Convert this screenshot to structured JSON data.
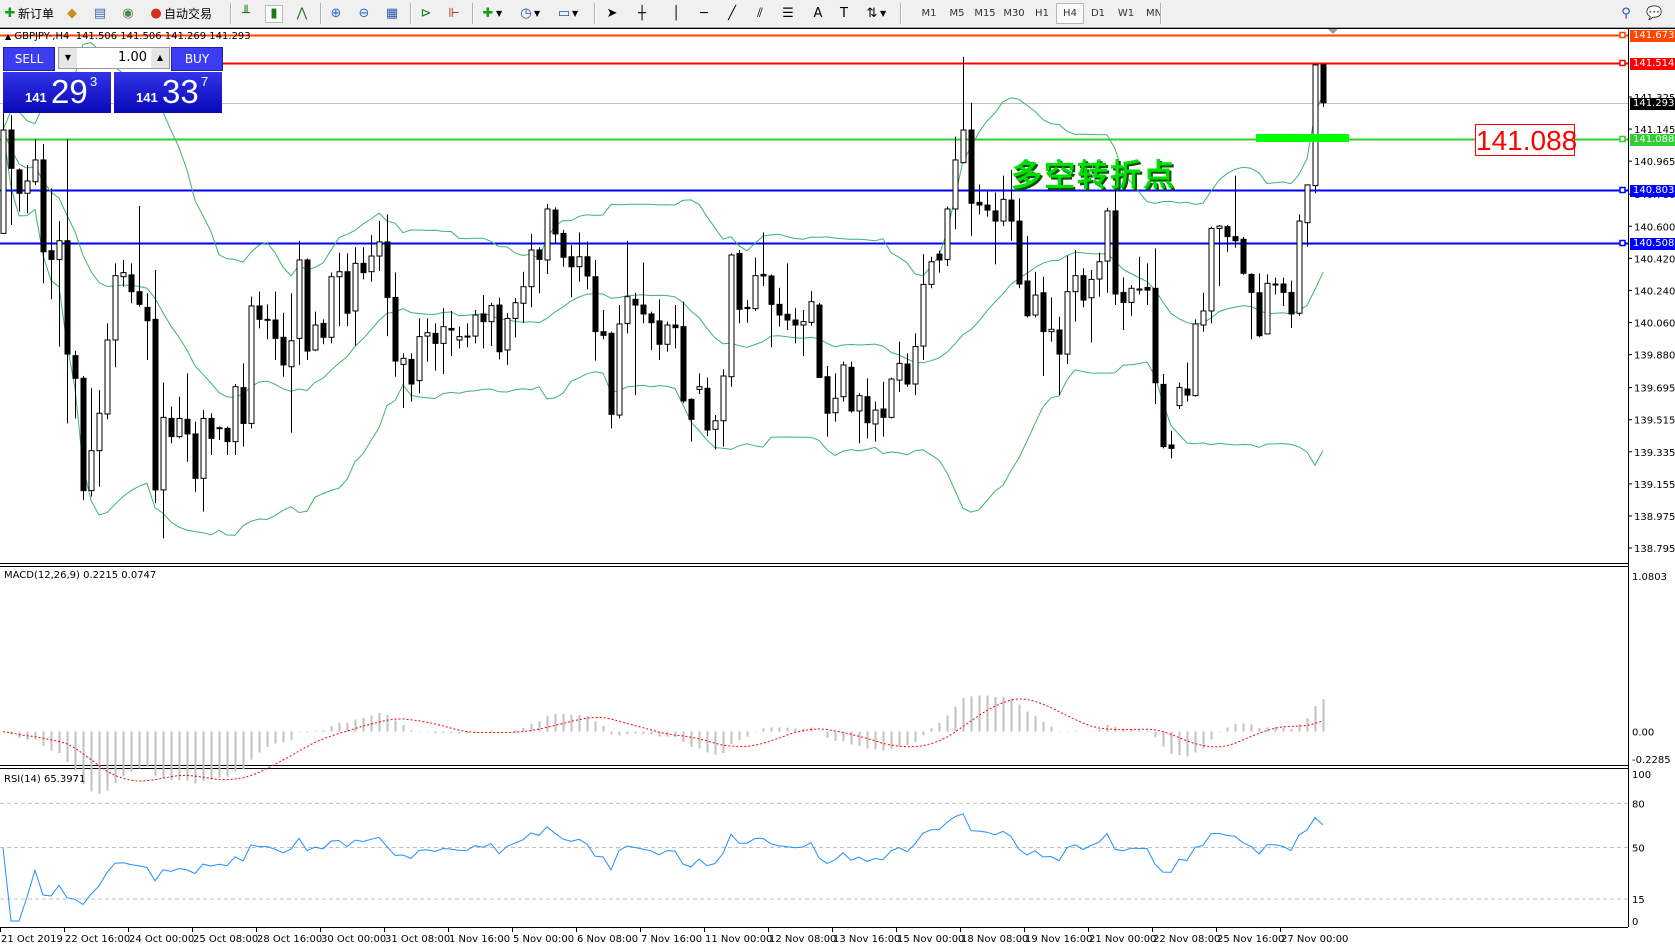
{
  "toolbar": {
    "new_order": {
      "label": "新订单",
      "icon": "new-order-icon"
    },
    "auto_trading": {
      "label": "自动交易",
      "icon": "auto-trading-icon"
    },
    "timeframes": [
      "M1",
      "M5",
      "M15",
      "M30",
      "H1",
      "H4",
      "D1",
      "W1",
      "MN"
    ],
    "active_timeframe": "H4"
  },
  "chart_header": {
    "symbol": "GBPJPY-,H4",
    "ohlc": "141.506 141.506 141.269 141.293"
  },
  "one_click": {
    "sell_label": "SELL",
    "buy_label": "BUY",
    "lot": "1.00",
    "sell_price": {
      "prefix": "141",
      "big": "29",
      "sup": "3"
    },
    "buy_price": {
      "prefix": "141",
      "big": "33",
      "sup": "7"
    }
  },
  "annotation": {
    "text": "多空转折点",
    "price_box": "141.088"
  },
  "colors": {
    "bull_body": "#ffffff",
    "bear_body": "#000000",
    "bollinger": "#3cb371",
    "macd_hist": "#c0c0c0",
    "macd_signal": "#ff0000",
    "rsi": "#1e90ff"
  },
  "chart_data": [
    {
      "type": "candlestick",
      "title": "GBPJPY-,H4",
      "ylim": [
        138.711,
        141.701
      ],
      "y_ticks": [
        "141.325",
        "141.145",
        "140.965",
        "140.780",
        "140.600",
        "140.420",
        "140.240",
        "140.060",
        "139.880",
        "139.695",
        "139.515",
        "139.335",
        "139.155",
        "138.975",
        "138.795"
      ],
      "x_tick_labels": [
        "21 Oct 2019",
        "22 Oct 16:00",
        "24 Oct 00:00",
        "25 Oct 08:00",
        "28 Oct 16:00",
        "30 Oct 00:00",
        "31 Oct 08:00",
        "1 Nov 16:00",
        "5 Nov 00:00",
        "6 Nov 08:00",
        "7 Nov 16:00",
        "11 Nov 00:00",
        "12 Nov 08:00",
        "13 Nov 16:00",
        "15 Nov 00:00",
        "18 Nov 08:00",
        "19 Nov 16:00",
        "21 Nov 00:00",
        "22 Nov 08:00",
        "25 Nov 16:00",
        "27 Nov 00:00"
      ],
      "overlays": [
        "Bollinger Bands"
      ],
      "horizontal_lines": [
        {
          "price": "141.673",
          "color": "#ff4500"
        },
        {
          "price": "141.514",
          "color": "#ff0000"
        },
        {
          "price": "141.293",
          "color": "#c0c0c0",
          "label_bg": "#000000"
        },
        {
          "price": "141.088",
          "color": "#32cd32"
        },
        {
          "price": "140.803",
          "color": "#0000ff"
        },
        {
          "price": "140.508",
          "color": "#0000ff"
        }
      ],
      "ohlc": [
        [
          140.56,
          141.336,
          140.56,
          141.14
        ],
        [
          141.14,
          141.224,
          140.607,
          140.925
        ],
        [
          140.916,
          140.925,
          140.682,
          140.785
        ],
        [
          140.785,
          140.944,
          140.673,
          140.854
        ],
        [
          140.85,
          141.088,
          140.831,
          140.972
        ],
        [
          140.972,
          141.06,
          140.28,
          140.457
        ],
        [
          140.463,
          140.813,
          140.19,
          140.414
        ],
        [
          140.414,
          140.629,
          139.925,
          140.519
        ],
        [
          140.519,
          141.088,
          139.494,
          139.883
        ],
        [
          139.874,
          139.902,
          139.522,
          139.747
        ],
        [
          139.747,
          139.76,
          139.064,
          139.117
        ],
        [
          139.117,
          139.691,
          139.083,
          139.341
        ],
        [
          139.341,
          139.681,
          139.139,
          139.551
        ],
        [
          139.547,
          140.055,
          139.517,
          139.962
        ],
        [
          139.962,
          140.392,
          139.809,
          140.323
        ],
        [
          140.317,
          140.411,
          140.261,
          140.34
        ],
        [
          140.327,
          140.392,
          140.168,
          140.233
        ],
        [
          140.233,
          140.714,
          140.149,
          140.162
        ],
        [
          140.145,
          140.224,
          139.85,
          140.07
        ],
        [
          140.078,
          140.355,
          139.046,
          139.121
        ],
        [
          139.121,
          139.723,
          138.849,
          139.528
        ],
        [
          139.522,
          139.588,
          139.382,
          139.42
        ],
        [
          139.42,
          139.644,
          139.41,
          139.522
        ],
        [
          139.517,
          139.775,
          139.279,
          139.435
        ],
        [
          139.435,
          139.504,
          139.111,
          139.186
        ],
        [
          139.186,
          139.569,
          138.999,
          139.522
        ],
        [
          139.522,
          139.551,
          139.317,
          139.41
        ],
        [
          139.466,
          139.476,
          139.401,
          139.47
        ],
        [
          139.466,
          139.476,
          139.317,
          139.392
        ],
        [
          139.392,
          139.715,
          139.317,
          139.7
        ],
        [
          139.695,
          139.831,
          139.364,
          139.494
        ],
        [
          139.494,
          140.205,
          139.466,
          140.153
        ],
        [
          140.153,
          140.233,
          140.027,
          140.078
        ],
        [
          140.078,
          140.162,
          139.966,
          140.076
        ],
        [
          140.074,
          140.233,
          139.85,
          139.971
        ],
        [
          139.977,
          140.115,
          139.756,
          139.822
        ],
        [
          139.812,
          140.224,
          139.442,
          139.958
        ],
        [
          139.971,
          140.519,
          139.822,
          140.411
        ],
        [
          140.411,
          140.42,
          139.85,
          139.9
        ],
        [
          139.906,
          140.121,
          139.9,
          140.046
        ],
        [
          140.055,
          140.078,
          139.938,
          139.977
        ],
        [
          139.977,
          140.34,
          139.943,
          140.317
        ],
        [
          140.317,
          140.452,
          140.04,
          140.345
        ],
        [
          140.345,
          140.448,
          140.04,
          140.112
        ],
        [
          140.125,
          140.482,
          139.93,
          140.392
        ],
        [
          140.392,
          140.482,
          140.302,
          140.34
        ],
        [
          140.345,
          140.551,
          140.289,
          140.433
        ],
        [
          140.433,
          140.631,
          140.349,
          140.512
        ],
        [
          140.512,
          140.667,
          139.984,
          140.201
        ],
        [
          140.201,
          140.341,
          139.756,
          139.844
        ],
        [
          139.825,
          139.887,
          139.582,
          139.859
        ],
        [
          139.853,
          139.887,
          139.616,
          139.715
        ],
        [
          139.734,
          140.083,
          139.663,
          139.981
        ],
        [
          139.984,
          140.083,
          139.84,
          140.003
        ],
        [
          139.999,
          140.055,
          139.79,
          139.943
        ],
        [
          139.943,
          140.14,
          139.771,
          140.037
        ],
        [
          140.027,
          140.125,
          139.872,
          140.018
        ],
        [
          139.962,
          140.037,
          139.915,
          139.981
        ],
        [
          139.984,
          140.055,
          139.921,
          139.982
        ],
        [
          139.984,
          140.13,
          139.943,
          140.102
        ],
        [
          140.108,
          140.214,
          139.915,
          140.065
        ],
        [
          140.065,
          140.171,
          139.928,
          140.155
        ],
        [
          140.158,
          140.199,
          139.853,
          139.896
        ],
        [
          139.906,
          140.112,
          139.822,
          140.083
        ],
        [
          140.083,
          140.196,
          139.977,
          140.171
        ],
        [
          140.168,
          140.345,
          140.059,
          140.261
        ],
        [
          140.261,
          140.557,
          140.145,
          140.467
        ],
        [
          140.467,
          140.482,
          140.224,
          140.414
        ],
        [
          140.411,
          140.725,
          140.332,
          140.697
        ],
        [
          140.691,
          140.706,
          140.504,
          140.557
        ],
        [
          140.56,
          140.58,
          140.373,
          140.426
        ],
        [
          140.429,
          140.495,
          140.201,
          140.373
        ],
        [
          140.373,
          140.566,
          140.289,
          140.429
        ],
        [
          140.429,
          140.514,
          140.246,
          140.321
        ],
        [
          140.317,
          140.411,
          139.846,
          140.009
        ],
        [
          140.009,
          140.13,
          139.966,
          139.988
        ],
        [
          139.999,
          140.009,
          139.466,
          139.545
        ],
        [
          139.541,
          140.158,
          139.522,
          140.052
        ],
        [
          140.055,
          140.519,
          139.999,
          140.205
        ],
        [
          140.19,
          140.227,
          139.653,
          140.158
        ],
        [
          140.158,
          140.396,
          140.055,
          140.108
        ],
        [
          140.108,
          140.121,
          139.906,
          140.059
        ],
        [
          140.069,
          140.19,
          139.85,
          139.938
        ],
        [
          139.938,
          140.065,
          139.896,
          140.046
        ],
        [
          140.046,
          140.158,
          139.915,
          140.031
        ],
        [
          140.037,
          140.177,
          139.607,
          139.62
        ],
        [
          139.629,
          139.635,
          139.392,
          139.517
        ],
        [
          139.685,
          139.775,
          139.659,
          139.7
        ],
        [
          139.691,
          139.751,
          139.423,
          139.457
        ],
        [
          139.461,
          139.541,
          139.348,
          139.509
        ],
        [
          139.509,
          139.797,
          139.364,
          139.76
        ],
        [
          139.756,
          140.448,
          139.7,
          140.439
        ],
        [
          140.448,
          140.467,
          140.055,
          140.134
        ],
        [
          140.145,
          140.186,
          140.059,
          140.138
        ],
        [
          140.138,
          140.424,
          140.125,
          140.323
        ],
        [
          140.33,
          140.566,
          140.265,
          140.321
        ],
        [
          140.321,
          140.33,
          139.921,
          140.162
        ],
        [
          140.162,
          140.255,
          140.037,
          140.102
        ],
        [
          140.106,
          140.392,
          140.018,
          140.074
        ],
        [
          140.074,
          140.14,
          139.943,
          140.046
        ],
        [
          140.046,
          140.13,
          139.872,
          140.065
        ],
        [
          140.061,
          140.237,
          140.042,
          140.177
        ],
        [
          140.158,
          140.17,
          139.752,
          139.752
        ],
        [
          139.756,
          139.816,
          139.42,
          139.551
        ],
        [
          139.554,
          139.775,
          139.504,
          139.635
        ],
        [
          139.644,
          139.84,
          139.616,
          139.822
        ],
        [
          139.809,
          139.84,
          139.554,
          139.564
        ],
        [
          139.564,
          139.663,
          139.382,
          139.65
        ],
        [
          139.644,
          139.747,
          139.41,
          139.498
        ],
        [
          139.491,
          139.616,
          139.392,
          139.569
        ],
        [
          139.575,
          139.728,
          139.42,
          139.528
        ],
        [
          139.528,
          139.751,
          139.522,
          139.743
        ],
        [
          139.737,
          139.953,
          139.672,
          139.831
        ],
        [
          139.827,
          139.887,
          139.7,
          139.715
        ],
        [
          139.715,
          139.999,
          139.653,
          139.925
        ],
        [
          139.928,
          140.444,
          139.85,
          140.274
        ],
        [
          140.274,
          140.429,
          140.252,
          140.401
        ],
        [
          140.444,
          140.463,
          140.34,
          140.411
        ],
        [
          140.414,
          140.71,
          140.377,
          140.697
        ],
        [
          140.697,
          141.103,
          140.583,
          140.972
        ],
        [
          140.957,
          141.551,
          140.953,
          141.14
        ],
        [
          141.14,
          141.293,
          140.547,
          140.729
        ],
        [
          140.734,
          140.835,
          140.667,
          140.719
        ],
        [
          140.719,
          140.794,
          140.654,
          140.691
        ],
        [
          140.686,
          140.79,
          140.386,
          140.629
        ],
        [
          140.629,
          140.884,
          140.601,
          140.751
        ],
        [
          140.747,
          140.916,
          140.519,
          140.629
        ],
        [
          140.629,
          140.757,
          140.252,
          140.276
        ],
        [
          140.293,
          140.545,
          140.089,
          140.098
        ],
        [
          140.102,
          140.345,
          140.089,
          140.214
        ],
        [
          140.227,
          140.317,
          139.76,
          140.009
        ],
        [
          140.009,
          140.201,
          139.953,
          140.022
        ],
        [
          140.018,
          140.093,
          139.653,
          139.883
        ],
        [
          139.883,
          140.435,
          139.827,
          140.233
        ],
        [
          140.233,
          140.467,
          140.065,
          140.323
        ],
        [
          140.323,
          140.364,
          140.145,
          140.186
        ],
        [
          140.199,
          140.355,
          139.949,
          140.302
        ],
        [
          140.304,
          140.452,
          140.205,
          140.401
        ],
        [
          140.405,
          140.704,
          140.227,
          140.686
        ],
        [
          140.686,
          140.888,
          140.158,
          140.22
        ],
        [
          140.229,
          140.313,
          140.018,
          140.173
        ],
        [
          140.173,
          140.27,
          140.098,
          140.252
        ],
        [
          140.248,
          140.429,
          140.218,
          140.248
        ],
        [
          140.257,
          140.392,
          140.158,
          140.242
        ],
        [
          140.252,
          140.476,
          139.603,
          139.722
        ],
        [
          139.713,
          139.771,
          139.354,
          139.364
        ],
        [
          139.373,
          139.453,
          139.298,
          139.354
        ],
        [
          139.594,
          139.723,
          139.575,
          139.696
        ],
        [
          139.687,
          139.835,
          139.616,
          139.653
        ],
        [
          139.65,
          140.078,
          139.644,
          140.052
        ],
        [
          140.046,
          140.227,
          140.009,
          140.125
        ],
        [
          140.125,
          140.598,
          140.055,
          140.588
        ],
        [
          140.588,
          140.607,
          140.265,
          140.601
        ],
        [
          140.598,
          140.607,
          140.457,
          140.542
        ],
        [
          140.542,
          140.884,
          140.48,
          140.519
        ],
        [
          140.527,
          140.54,
          140.327,
          140.336
        ],
        [
          140.33,
          140.336,
          139.966,
          140.229
        ],
        [
          140.227,
          140.336,
          139.977,
          139.986
        ],
        [
          139.996,
          140.33,
          139.996,
          140.28
        ],
        [
          140.276,
          140.312,
          140.218,
          140.276
        ],
        [
          140.276,
          140.312,
          140.153,
          140.229
        ],
        [
          140.229,
          140.295,
          140.031,
          140.108
        ],
        [
          140.112,
          140.667,
          140.098,
          140.629
        ],
        [
          140.62,
          140.832,
          140.486,
          140.832
        ],
        [
          140.828,
          141.514,
          140.785,
          141.505
        ],
        [
          141.506,
          141.506,
          141.269,
          141.293
        ]
      ]
    },
    {
      "type": "bar+line",
      "title": "MACD(12,26,9) 0.2215 0.0747",
      "ylim": [
        -0.2285,
        1.0803
      ],
      "y_ticks": [
        "1.0803",
        "0.00",
        "-0.2285"
      ]
    },
    {
      "type": "line",
      "title": "RSI(14) 65.3971",
      "ylim": [
        0,
        100
      ],
      "levels": [
        80,
        50,
        15
      ],
      "y_ticks": [
        "100",
        "80",
        "50",
        "15",
        "0"
      ]
    }
  ]
}
